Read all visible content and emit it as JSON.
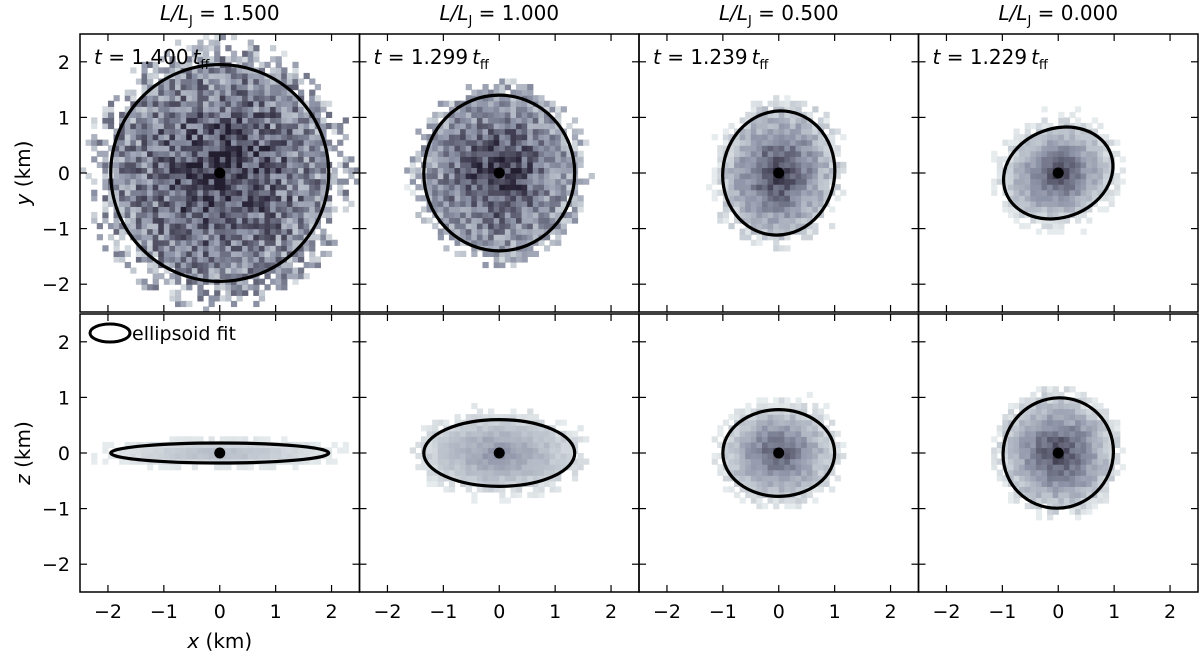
{
  "chart_data": {
    "type": "heatmap",
    "x_label_var": "x",
    "x_label_unit": " (km)",
    "xlim": [
      -2.5,
      2.5
    ],
    "xticks": [
      -2,
      -1,
      0,
      1,
      2
    ],
    "xtick_labels": [
      "−2",
      "−1",
      "0",
      "1",
      "2"
    ],
    "yticks": [
      -2,
      -1,
      0,
      1,
      2
    ],
    "ytick_labels": [
      "−2",
      "−1",
      "0",
      "1",
      "2"
    ],
    "rows": [
      {
        "ylabel_var": "y",
        "ylabel_unit": " (km)",
        "ylim": [
          -2.5,
          2.5
        ]
      },
      {
        "ylabel_var": "z",
        "ylabel_unit": " (km)",
        "ylim": [
          -2.5,
          2.5
        ]
      }
    ],
    "legend": {
      "label": "ellipsoid fit",
      "placement": "top-left of lower-left panel"
    },
    "colormap": {
      "low": "#eef4f3",
      "mid": "#8f95a8",
      "high": "#231d30"
    },
    "panels": [
      {
        "title_prefix": "L/L",
        "title_sub": "J",
        "title_value": " = 1.500",
        "time_prefix": "t = ",
        "time_value": "1.400",
        "time_unit": "t",
        "time_sub": "ff",
        "xy": {
          "fit": {
            "a": 1.95,
            "b": 1.95,
            "angle_deg": 0
          },
          "extent": 2.35,
          "density_scale": 1.1,
          "center_mass": 0.35,
          "noise": 0.55,
          "marker": [
            0.0,
            0.0
          ]
        },
        "xz": {
          "fit": {
            "a": 1.95,
            "b": 0.18,
            "angle_deg": 0
          },
          "extent": 2.2,
          "density_scale": 0.22,
          "center_mass": 0.6,
          "noise": 0.2,
          "marker": [
            0.0,
            0.0
          ]
        }
      },
      {
        "title_prefix": "L/L",
        "title_sub": "J",
        "title_value": " = 1.000",
        "time_prefix": "t = ",
        "time_value": "1.299",
        "time_unit": "t",
        "time_sub": "ff",
        "xy": {
          "fit": {
            "a": 1.35,
            "b": 1.4,
            "angle_deg": 0
          },
          "extent": 1.6,
          "density_scale": 1.05,
          "center_mass": 0.45,
          "noise": 0.45,
          "marker": [
            0.0,
            0.0
          ]
        },
        "xz": {
          "fit": {
            "a": 1.35,
            "b": 0.6,
            "angle_deg": 0
          },
          "extent": 1.5,
          "density_scale": 0.45,
          "center_mass": 0.6,
          "noise": 0.25,
          "marker": [
            0.0,
            0.0
          ]
        }
      },
      {
        "title_prefix": "L/L",
        "title_sub": "J",
        "title_value": " = 0.500",
        "time_prefix": "t = ",
        "time_value": "1.239",
        "time_unit": "t",
        "time_sub": "ff",
        "xy": {
          "fit": {
            "a": 1.0,
            "b": 1.12,
            "angle_deg": -10
          },
          "extent": 1.3,
          "density_scale": 0.85,
          "center_mass": 0.75,
          "noise": 0.3,
          "marker": [
            0.0,
            0.0
          ]
        },
        "xz": {
          "fit": {
            "a": 1.0,
            "b": 0.78,
            "angle_deg": 0
          },
          "extent": 1.15,
          "density_scale": 0.7,
          "center_mass": 0.8,
          "noise": 0.25,
          "marker": [
            0.0,
            0.0
          ]
        }
      },
      {
        "title_prefix": "L/L",
        "title_sub": "J",
        "title_value": " = 0.000",
        "time_prefix": "t = ",
        "time_value": "1.229",
        "time_unit": "t",
        "time_sub": "ff",
        "xy": {
          "fit": {
            "a": 1.0,
            "b": 0.8,
            "angle_deg": 20
          },
          "extent": 1.15,
          "density_scale": 0.75,
          "center_mass": 0.85,
          "noise": 0.25,
          "marker": [
            0.0,
            0.0
          ]
        },
        "xz": {
          "fit": {
            "a": 1.0,
            "b": 0.98,
            "angle_deg": 45
          },
          "extent": 1.15,
          "density_scale": 0.8,
          "center_mass": 0.8,
          "noise": 0.25,
          "marker": [
            0.0,
            0.0
          ]
        }
      }
    ]
  }
}
